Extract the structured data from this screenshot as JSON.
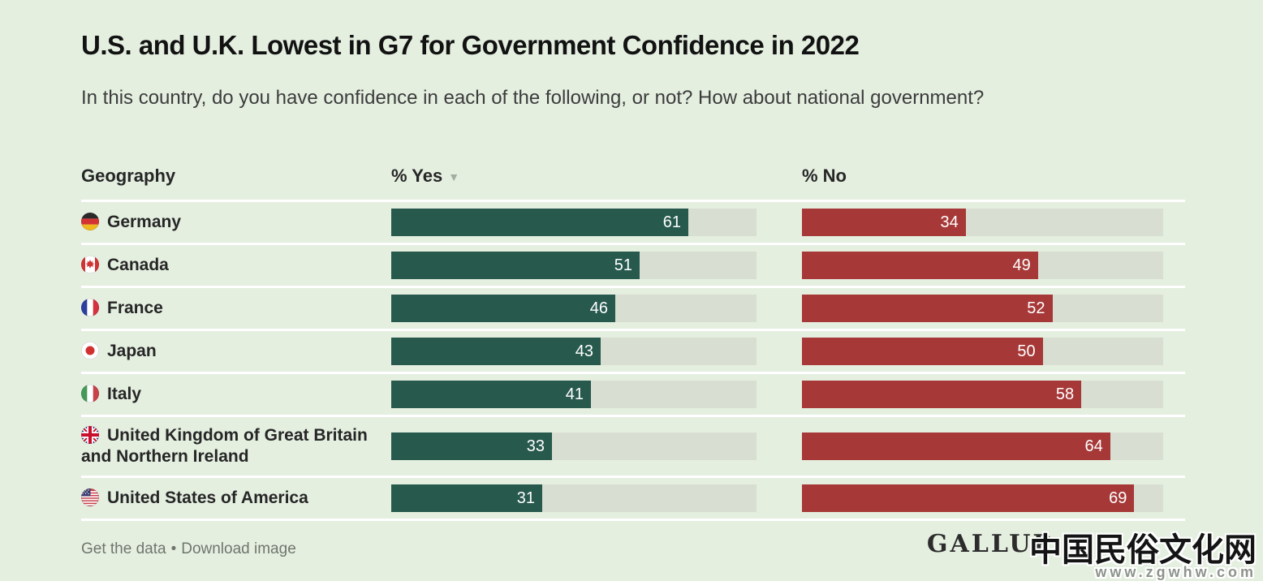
{
  "title": "U.S. and U.K. Lowest in G7 for Government Confidence in 2022",
  "subtitle": "In this country, do you have confidence in each of the following, or not? How about national government?",
  "table": {
    "headers": [
      "Geography",
      "% Yes",
      "% No"
    ],
    "sort_indicator": "▼",
    "sorted_by": "% Yes descending"
  },
  "rows": [
    {
      "country": "Germany",
      "flag": "germany-flag",
      "yes": 61,
      "no": 34
    },
    {
      "country": "Canada",
      "flag": "canada-flag",
      "yes": 51,
      "no": 49
    },
    {
      "country": "France",
      "flag": "france-flag",
      "yes": 46,
      "no": 52
    },
    {
      "country": "Japan",
      "flag": "japan-flag",
      "yes": 43,
      "no": 50
    },
    {
      "country": "Italy",
      "flag": "italy-flag",
      "yes": 41,
      "no": 58
    },
    {
      "country": "United Kingdom of Great Britain and Northern Ireland",
      "flag": "uk-flag",
      "yes": 33,
      "no": 64
    },
    {
      "country": "United States of America",
      "flag": "us-flag",
      "yes": 31,
      "no": 69
    }
  ],
  "chart_data": {
    "type": "bar",
    "orientation": "horizontal",
    "title": "U.S. and U.K. Lowest in G7 for Government Confidence in 2022",
    "subtitle": "In this country, do you have confidence in each of the following, or not? How about national government?",
    "categories": [
      "Germany",
      "Canada",
      "France",
      "Japan",
      "Italy",
      "United Kingdom of Great Britain and Northern Ireland",
      "United States of America"
    ],
    "series": [
      {
        "name": "% Yes",
        "color": "#27594d",
        "values": [
          61,
          51,
          46,
          43,
          41,
          33,
          31
        ]
      },
      {
        "name": "% No",
        "color": "#a63938",
        "values": [
          34,
          49,
          52,
          50,
          58,
          64,
          69
        ]
      }
    ],
    "xlim": [
      0,
      75
    ],
    "value_labels": "inside-end, white",
    "grid": false,
    "legend_position": "column-headers"
  },
  "footer": {
    "get_data": "Get the data",
    "separator": "•",
    "download_image": "Download image"
  },
  "watermark": {
    "line1": "中国民俗文化网",
    "line2": "www.zgwhw.com",
    "obscured_text": "GALLUP"
  },
  "colors": {
    "background": "#e4efe0",
    "yes_bar": "#27594d",
    "no_bar": "#a63938",
    "bar_track": "#d8ded1",
    "row_separator": "#ffffff",
    "footer_text": "#70756e"
  }
}
